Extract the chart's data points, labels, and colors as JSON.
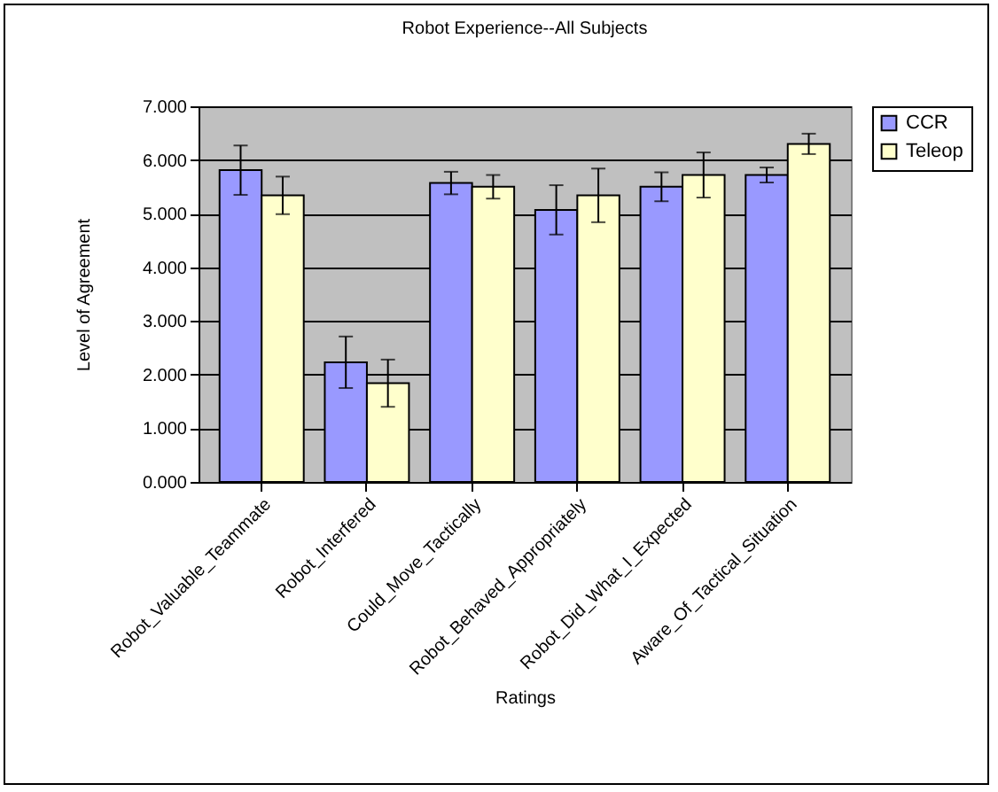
{
  "chart_data": {
    "type": "bar",
    "title": "Robot Experience--All Subjects",
    "xlabel": "Ratings",
    "ylabel": "Level of Agreement",
    "categories": [
      "Robot_Valuable_Teammate",
      "Robot_Interfered",
      "Could_Move_Tactically",
      "Robot_Behaved_Appropriately",
      "Robot_Did_What_I_Expected",
      "Aware_Of_Tactical_Situation"
    ],
    "series": [
      {
        "name": "CCR",
        "color": "#9999ff",
        "values": [
          5.81,
          2.23,
          5.57,
          5.07,
          5.5,
          5.72
        ],
        "errors": [
          0.46,
          0.48,
          0.21,
          0.46,
          0.27,
          0.14
        ]
      },
      {
        "name": "Teleop",
        "color": "#ffffcc",
        "values": [
          5.34,
          1.84,
          5.5,
          5.34,
          5.72,
          6.3
        ],
        "errors": [
          0.35,
          0.44,
          0.22,
          0.5,
          0.42,
          0.19
        ]
      }
    ],
    "ylim": [
      0,
      7
    ],
    "yticks": [
      {
        "value": 0,
        "label": "0.000"
      },
      {
        "value": 1,
        "label": "1.000"
      },
      {
        "value": 2,
        "label": "2.000"
      },
      {
        "value": 3,
        "label": "3.000"
      },
      {
        "value": 4,
        "label": "4.000"
      },
      {
        "value": 5,
        "label": "5.000"
      },
      {
        "value": 6,
        "label": "6.000"
      },
      {
        "value": 7,
        "label": "7.000"
      }
    ],
    "grid": "y",
    "legend": "right"
  }
}
